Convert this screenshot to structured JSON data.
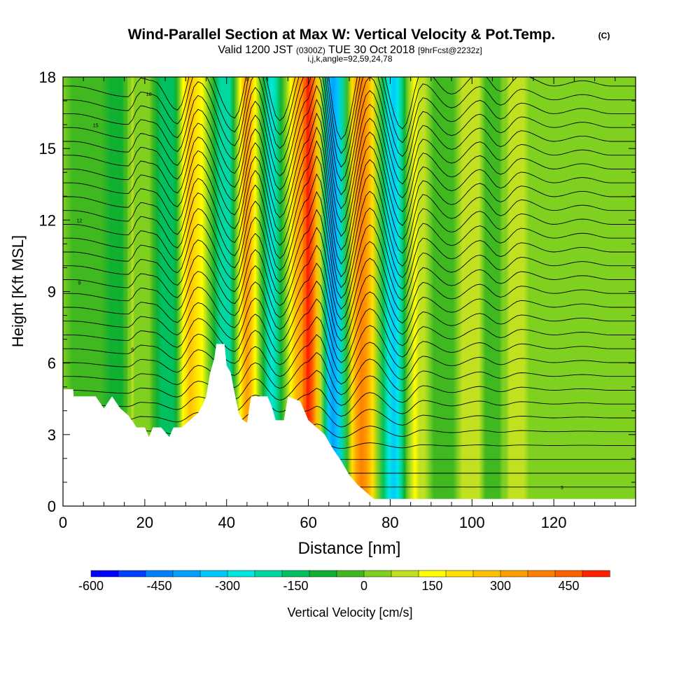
{
  "chart_data": {
    "type": "heatmap",
    "title": "Wind-Parallel Section at Max W: Vertical Velocity & Pot.Temp.",
    "title_mark": "(C)",
    "subtitle_parts": [
      "Valid 1200 JST",
      "(0300Z)",
      "TUE 30 Oct 2018",
      "[9hrFcst@2232z]"
    ],
    "subtitle2": "i,j,k,angle=92,59,24,78",
    "xlabel": "Distance [nm]",
    "ylabel": "Height [Kft MSL]",
    "xlim": [
      0,
      140
    ],
    "ylim": [
      0,
      18
    ],
    "x_ticks": [
      "0",
      "20",
      "40",
      "60",
      "80",
      "100",
      "120"
    ],
    "y_ticks": [
      "0",
      "3",
      "6",
      "9",
      "12",
      "15",
      "18"
    ],
    "grid": false,
    "colorbar_label": "Vertical Velocity [cm/s]",
    "colorbar_tick_labels": [
      "-600",
      "-450",
      "-300",
      "-150",
      "0",
      "150",
      "300",
      "450"
    ],
    "colorbar_range": [
      -600,
      540
    ],
    "colorbar_step": 60,
    "colorbar_colors": [
      "#0000ff",
      "#0040ff",
      "#0080ff",
      "#00a0ff",
      "#00c8ff",
      "#00e8e0",
      "#00d8a0",
      "#00c060",
      "#10b030",
      "#40b820",
      "#80d020",
      "#c0e020",
      "#ffff00",
      "#ffe000",
      "#ffc000",
      "#ffa000",
      "#ff8000",
      "#ff6000",
      "#ff2000",
      "#e00000",
      "#c00020",
      "#a00040",
      "#800060",
      "#600080",
      "#400090"
    ],
    "columns_x": [
      0,
      14,
      17,
      20,
      26,
      31,
      40,
      45,
      51,
      58,
      60,
      66,
      73,
      81,
      86,
      93,
      100,
      105,
      110,
      118,
      125,
      132,
      140
    ],
    "columns_w": [
      0,
      -80,
      60,
      40,
      -180,
      240,
      -240,
      300,
      -260,
      320,
      520,
      -400,
      380,
      -320,
      120,
      -60,
      100,
      -40,
      80,
      0,
      40,
      0,
      0
    ],
    "terrain_kft": [
      [
        0,
        4.9
      ],
      [
        2.5,
        4.9
      ],
      [
        2.6,
        4.6
      ],
      [
        8,
        4.6
      ],
      [
        10,
        4.1
      ],
      [
        12,
        4.6
      ],
      [
        14,
        4.1
      ],
      [
        16,
        3.8
      ],
      [
        18,
        3.3
      ],
      [
        20,
        3.3
      ],
      [
        21,
        2.9
      ],
      [
        22,
        3.3
      ],
      [
        24,
        3.3
      ],
      [
        26,
        2.9
      ],
      [
        27,
        3.3
      ],
      [
        29,
        3.3
      ],
      [
        31,
        3.6
      ],
      [
        33,
        3.9
      ],
      [
        34,
        4.2
      ],
      [
        35,
        4.6
      ],
      [
        36,
        5.6
      ],
      [
        37,
        6.2
      ],
      [
        37.5,
        6.8
      ],
      [
        39.5,
        6.8
      ],
      [
        40,
        5.9
      ],
      [
        41,
        5.6
      ],
      [
        42,
        4.7
      ],
      [
        43,
        3.9
      ],
      [
        44,
        3.6
      ],
      [
        45,
        3.5
      ],
      [
        46,
        4.6
      ],
      [
        50,
        4.6
      ],
      [
        51,
        4.2
      ],
      [
        52,
        3.6
      ],
      [
        54,
        3.6
      ],
      [
        55,
        4.6
      ],
      [
        58,
        4.4
      ],
      [
        60,
        3.6
      ],
      [
        62,
        3.3
      ],
      [
        64,
        3.0
      ],
      [
        66,
        2.4
      ],
      [
        68,
        1.9
      ],
      [
        70,
        1.3
      ],
      [
        72,
        0.9
      ],
      [
        74,
        0.6
      ],
      [
        76,
        0.3
      ],
      [
        78,
        0.3
      ],
      [
        80,
        0.3
      ],
      [
        140,
        0.3
      ]
    ],
    "theta_isentropes": 30,
    "contour_labels": [
      "12",
      "9",
      "15",
      "18",
      "6",
      "3"
    ]
  }
}
